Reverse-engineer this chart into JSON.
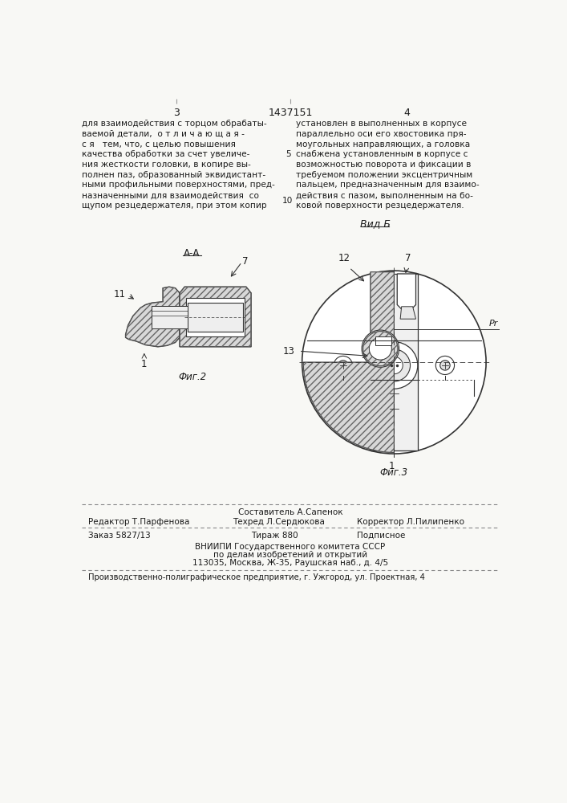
{
  "bg_color": "#f8f8f5",
  "page_width": 7.07,
  "page_height": 10.0,
  "header": {
    "page_left": "3",
    "patent_number": "1437151",
    "page_right": "4"
  },
  "left_column_text": [
    "для взаимодействия с торцом обрабаты-",
    "ваемой детали,  о т л и ч а ю щ а я -",
    "с я   тем, что, с целью повышения",
    "качества обработки за счет увеличе-",
    "ния жесткости головки, в копире вы-",
    "полнен паз, образованный эквидистант-",
    "ными профильными поверхностями, пред-",
    "назначенными для взаимодействия  со",
    "щупом резцедержателя, при этом копир"
  ],
  "right_column_text": [
    "установлен в выполненных в корпусе",
    "параллельно оси его хвостовика пря-",
    "моугольных направляющих, а головка",
    "снабжена установленным в корпусе с",
    "возможностью поворота и фиксации в",
    "требуемом положении эксцентричным",
    "пальцем, предназначенным для взаимо-",
    "действия с пазом, выполненным на бо-",
    "ковой поверхности резцедержателя."
  ],
  "view_label": "Вид Б",
  "fig2_label": "Фиг.2",
  "fig3_label": "Фиг.3",
  "footer_row0_center": "Составитель А.Сапенок",
  "footer_row1": [
    "Редактор Т.Парфенова",
    "Техред Л.Сердюкова",
    "Корректор Л.Пилипенко"
  ],
  "footer_row2": [
    "Заказ 5827/13",
    "Тираж 880",
    "Подписное"
  ],
  "footer_vniiipi": [
    "ВНИИПИ Государственного комитета СССР",
    "по делам изобретений и открытий",
    "113035, Москва, Ж-35, Раушская наб., д. 4/5"
  ],
  "footer_printer": "Производственно-полиграфическое предприятие, г. Ужгород, ул. Проектная, 4",
  "text_color": "#1a1a1a",
  "line_color": "#333333",
  "hatch_color": "#555555",
  "white_color": "#ffffff"
}
